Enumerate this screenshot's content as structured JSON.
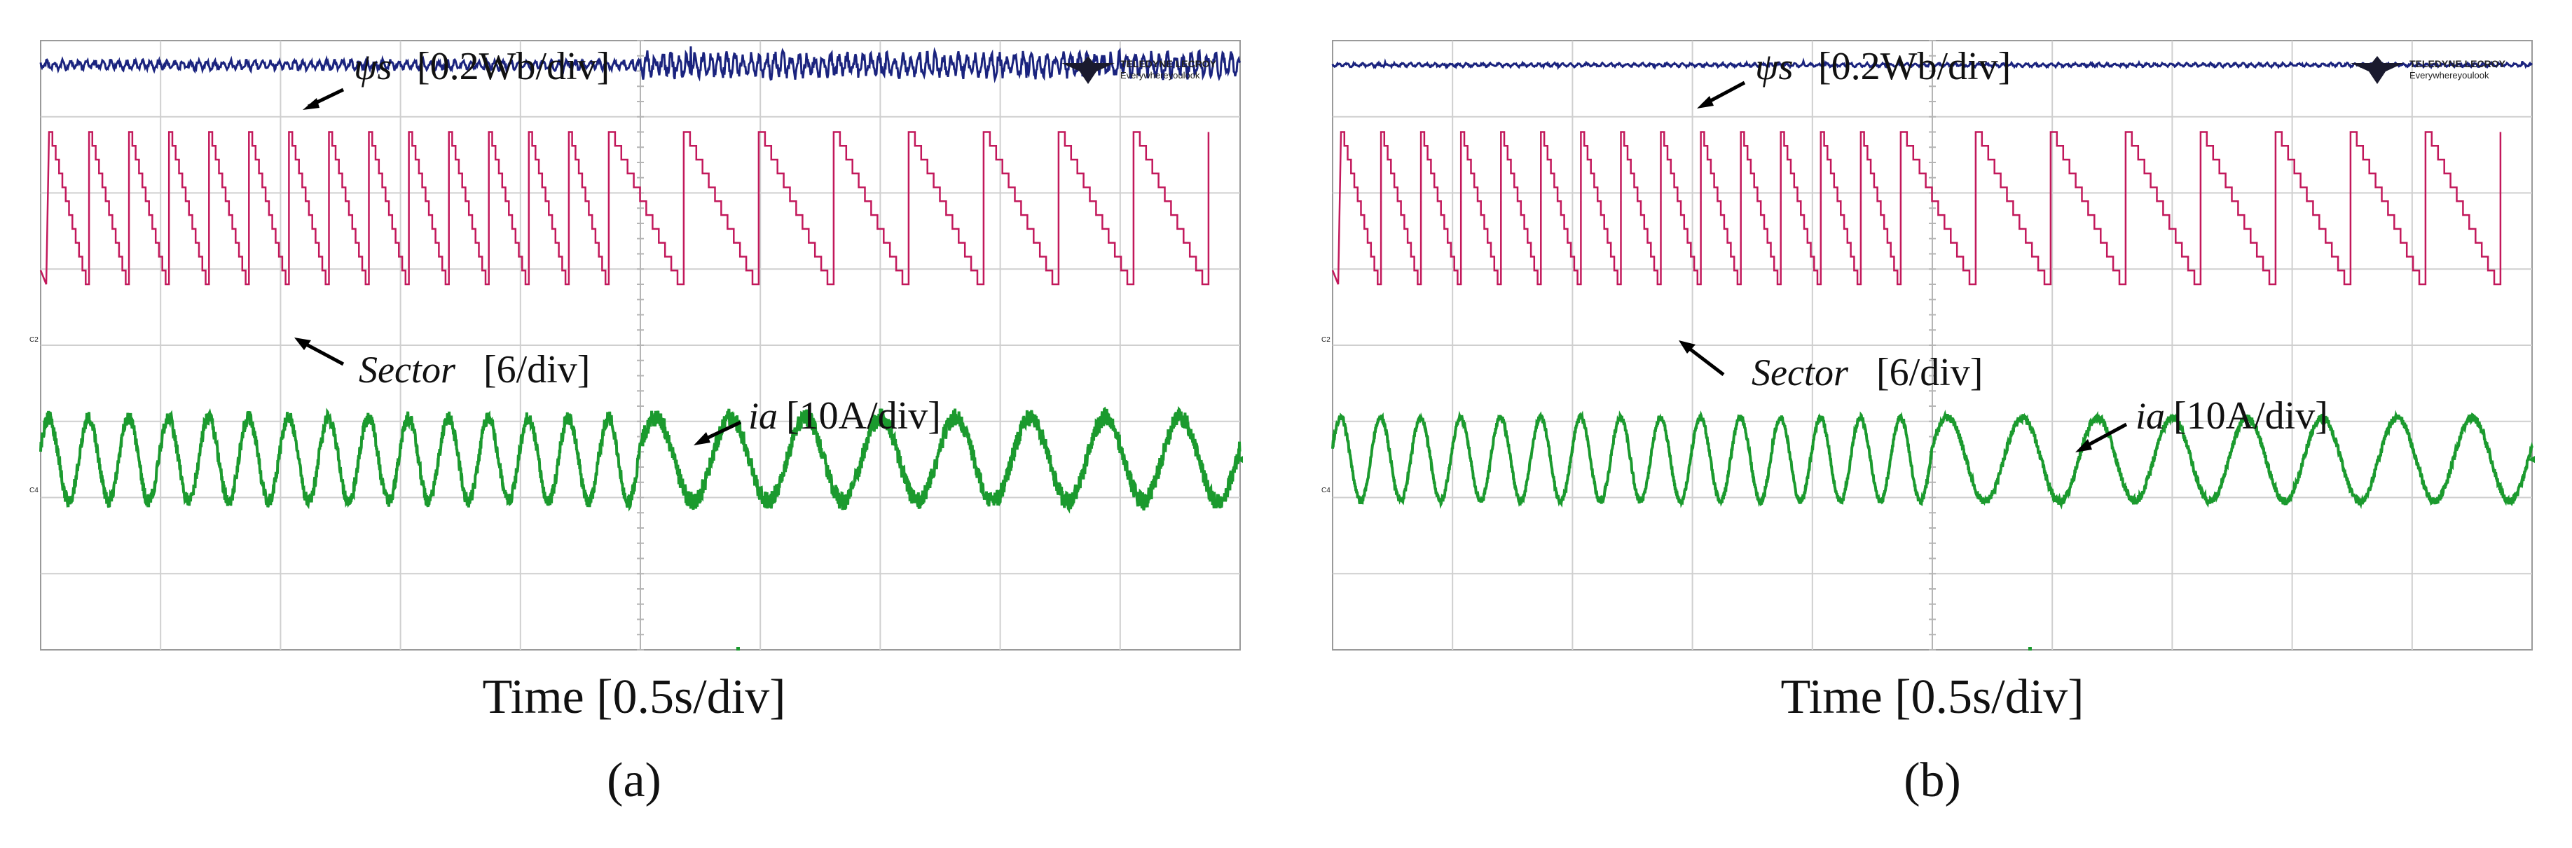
{
  "panels": [
    {
      "id": "a",
      "caption": "(a)",
      "time_label": "Time [0.5s/div]",
      "logo": {
        "brand": "TELEDYNE LECROY",
        "tagline": "Everywhereyoulook"
      },
      "markers": {
        "ch2": "C2",
        "ch4": "C4"
      },
      "labels": {
        "flux": {
          "symbol": "ψs",
          "unit": "[0.2Wb/div]"
        },
        "sector": {
          "symbol": "Sector",
          "unit": "[6/div]"
        },
        "current": {
          "symbol": "ia",
          "unit": "[10A/div]"
        }
      }
    },
    {
      "id": "b",
      "caption": "(b)",
      "time_label": "Time [0.5s/div]",
      "logo": {
        "brand": "TELEDYNE LECROY",
        "tagline": "Everywhereyoulook"
      },
      "markers": {
        "ch2": "C2",
        "ch4": "C4"
      },
      "labels": {
        "flux": {
          "symbol": "ψs",
          "unit": "[0.2Wb/div]"
        },
        "sector": {
          "symbol": "Sector",
          "unit": "[6/div]"
        },
        "current": {
          "symbol": "ia",
          "unit": "[10A/div]"
        }
      }
    }
  ],
  "chart_data": [
    {
      "type": "line",
      "panel": "a",
      "title": "",
      "xlabel": "Time [0.5s/div]",
      "grid": true,
      "x_divisions": 10,
      "y_divisions": 8,
      "x_range_s": [
        0,
        5
      ],
      "step_change_time_s": 2.5,
      "colors": {
        "flux": "#1a237e",
        "sector": "#c2185b",
        "current": "#1b9a2e",
        "grid": "#cfcfcf"
      },
      "series": [
        {
          "name": "ψs",
          "scale": "0.2Wb/div",
          "shape": "constant with ripple",
          "ripple_before_div": 0.08,
          "ripple_after_div": 0.2
        },
        {
          "name": "Sector",
          "scale": "6/div",
          "shape": "sawtooth 12 to 1",
          "cycles_before": 15,
          "cycles_after": 8
        },
        {
          "name": "ia",
          "scale": "10A/div",
          "shape": "sinusoid with noise",
          "amplitude_div": 0.55,
          "cycles_before": 15,
          "cycles_after": 8,
          "noise_before_div": 0.09,
          "noise_after_div": 0.12
        }
      ]
    },
    {
      "type": "line",
      "panel": "b",
      "title": "",
      "xlabel": "Time [0.5s/div]",
      "grid": true,
      "x_divisions": 10,
      "y_divisions": 8,
      "x_range_s": [
        0,
        5
      ],
      "step_change_time_s": 2.5,
      "colors": {
        "flux": "#1a237e",
        "sector": "#c2185b",
        "current": "#1b9a2e",
        "grid": "#cfcfcf"
      },
      "series": [
        {
          "name": "ψs",
          "scale": "0.2Wb/div",
          "shape": "constant with small ripple",
          "ripple_before_div": 0.03,
          "ripple_after_div": 0.03
        },
        {
          "name": "Sector",
          "scale": "6/div",
          "shape": "sawtooth 12 to 1",
          "cycles_before": 15,
          "cycles_after": 8
        },
        {
          "name": "ia",
          "scale": "10A/div",
          "shape": "sinusoid",
          "amplitude_div": 0.55,
          "cycles_before": 15,
          "cycles_after": 8,
          "noise_before_div": 0.04,
          "noise_after_div": 0.05
        }
      ]
    }
  ]
}
